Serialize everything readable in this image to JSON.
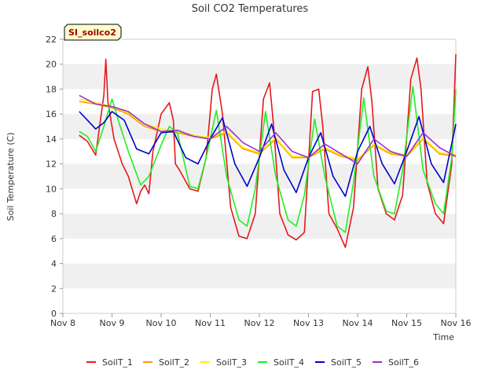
{
  "chart_data": {
    "type": "line",
    "title": "Soil CO2 Temperatures",
    "site_label": "SI_soilco2",
    "xlabel": "Time",
    "ylabel": "Soil Temperature (C)",
    "ylim": [
      0,
      22
    ],
    "yticks": [
      0,
      2,
      4,
      6,
      8,
      10,
      12,
      14,
      16,
      18,
      20,
      22
    ],
    "xlim": [
      "2024-11-08",
      "2024-11-16"
    ],
    "xticks": [
      "Nov 8",
      "Nov 9",
      "Nov 10",
      "Nov 11",
      "Nov 12",
      "Nov 13",
      "Nov 14",
      "Nov 15",
      "Nov 16"
    ],
    "grid": "horizontal bands",
    "legend_position": "bottom",
    "series": [
      {
        "name": "SoilT_1",
        "color": "#e41a1c",
        "x": [
          "2024-11-08 08:00",
          "2024-11-08 12:00",
          "2024-11-08 16:00",
          "2024-11-08 20:00",
          "2024-11-08 21:00",
          "2024-11-08 22:00",
          "2024-11-09 01:00",
          "2024-11-09 05:00",
          "2024-11-09 08:00",
          "2024-11-09 12:00",
          "2024-11-09 14:00",
          "2024-11-09 16:00",
          "2024-11-09 18:00",
          "2024-11-09 20:00",
          "2024-11-10 00:00",
          "2024-11-10 04:00",
          "2024-11-10 06:00",
          "2024-11-10 07:00",
          "2024-11-10 09:00",
          "2024-11-10 14:00",
          "2024-11-10 18:00",
          "2024-11-10 22:00",
          "2024-11-11 01:00",
          "2024-11-11 03:00",
          "2024-11-11 06:00",
          "2024-11-11 10:00",
          "2024-11-11 14:00",
          "2024-11-11 18:00",
          "2024-11-11 22:00",
          "2024-11-12 02:00",
          "2024-11-12 05:00",
          "2024-11-12 07:00",
          "2024-11-12 10:00",
          "2024-11-12 14:00",
          "2024-11-12 18:00",
          "2024-11-12 22:00",
          "2024-11-13 02:00",
          "2024-11-13 05:00",
          "2024-11-13 07:00",
          "2024-11-13 10:00",
          "2024-11-13 14:00",
          "2024-11-13 18:00",
          "2024-11-13 22:00",
          "2024-11-14 02:00",
          "2024-11-14 05:00",
          "2024-11-14 07:00",
          "2024-11-14 10:00",
          "2024-11-14 14:00",
          "2024-11-14 18:00",
          "2024-11-14 22:00",
          "2024-11-15 02:00",
          "2024-11-15 05:00",
          "2024-11-15 07:00",
          "2024-11-15 10:00",
          "2024-11-15 14:00",
          "2024-11-15 18:00",
          "2024-11-15 22:00",
          "2024-11-16 00:00"
        ],
        "y": [
          14.3,
          13.8,
          12.7,
          17.5,
          20.4,
          17.0,
          14.0,
          12.0,
          11.0,
          8.8,
          9.8,
          10.3,
          9.6,
          13.0,
          16.0,
          16.9,
          15.5,
          12.0,
          11.5,
          10.0,
          9.8,
          12.5,
          18.0,
          19.2,
          16.0,
          8.5,
          6.2,
          6.0,
          8.0,
          17.2,
          18.5,
          15.0,
          8.0,
          6.3,
          5.9,
          6.5,
          17.8,
          18.0,
          15.0,
          8.0,
          6.8,
          5.3,
          8.5,
          18.0,
          19.8,
          17.0,
          10.0,
          8.0,
          7.5,
          9.5,
          18.8,
          20.5,
          18.0,
          10.5,
          8.0,
          7.2,
          12.0,
          20.8
        ]
      },
      {
        "name": "SoilT_2",
        "color": "#ff9900",
        "x": [
          "2024-11-08 08:00",
          "2024-11-08 16:00",
          "2024-11-09 00:00",
          "2024-11-09 08:00",
          "2024-11-09 16:00",
          "2024-11-10 00:00",
          "2024-11-10 08:00",
          "2024-11-10 16:00",
          "2024-11-11 00:00",
          "2024-11-11 08:00",
          "2024-11-11 16:00",
          "2024-11-12 00:00",
          "2024-11-12 08:00",
          "2024-11-12 16:00",
          "2024-11-13 00:00",
          "2024-11-13 08:00",
          "2024-11-13 16:00",
          "2024-11-14 00:00",
          "2024-11-14 08:00",
          "2024-11-14 16:00",
          "2024-11-15 00:00",
          "2024-11-15 08:00",
          "2024-11-15 16:00",
          "2024-11-16 00:00"
        ],
        "y": [
          17.0,
          16.8,
          16.5,
          16.0,
          15.0,
          14.6,
          14.5,
          14.2,
          14.0,
          14.5,
          13.2,
          12.8,
          14.0,
          12.5,
          12.5,
          13.2,
          12.6,
          12.3,
          13.5,
          12.8,
          12.6,
          14.0,
          12.8,
          12.6
        ]
      },
      {
        "name": "SoilT_3",
        "color": "#ffee00",
        "x": [
          "2024-11-08 08:00",
          "2024-11-08 16:00",
          "2024-11-09 00:00",
          "2024-11-09 08:00",
          "2024-11-09 16:00",
          "2024-11-10 00:00",
          "2024-11-10 08:00",
          "2024-11-10 16:00",
          "2024-11-11 00:00",
          "2024-11-11 08:00",
          "2024-11-11 16:00",
          "2024-11-12 00:00",
          "2024-11-12 08:00",
          "2024-11-12 16:00",
          "2024-11-13 00:00",
          "2024-11-13 08:00",
          "2024-11-13 16:00",
          "2024-11-14 00:00",
          "2024-11-14 08:00",
          "2024-11-14 16:00",
          "2024-11-15 00:00",
          "2024-11-15 08:00",
          "2024-11-15 16:00",
          "2024-11-16 00:00"
        ],
        "y": [
          17.2,
          16.9,
          16.6,
          16.1,
          15.2,
          14.8,
          14.6,
          14.3,
          14.1,
          14.6,
          13.3,
          12.9,
          14.1,
          12.6,
          12.6,
          13.3,
          12.7,
          12.4,
          13.6,
          12.9,
          12.7,
          14.1,
          12.9,
          12.7
        ]
      },
      {
        "name": "SoilT_4",
        "color": "#22ee22",
        "x": [
          "2024-11-08 08:00",
          "2024-11-08 12:00",
          "2024-11-08 16:00",
          "2024-11-08 20:00",
          "2024-11-09 00:00",
          "2024-11-09 04:00",
          "2024-11-09 08:00",
          "2024-11-09 14:00",
          "2024-11-09 18:00",
          "2024-11-10 00:00",
          "2024-11-10 04:00",
          "2024-11-10 08:00",
          "2024-11-10 14:00",
          "2024-11-10 18:00",
          "2024-11-10 22:00",
          "2024-11-11 03:00",
          "2024-11-11 08:00",
          "2024-11-11 14:00",
          "2024-11-11 18:00",
          "2024-11-11 22:00",
          "2024-11-12 03:00",
          "2024-11-12 08:00",
          "2024-11-12 14:00",
          "2024-11-12 18:00",
          "2024-11-12 22:00",
          "2024-11-13 03:00",
          "2024-11-13 08:00",
          "2024-11-13 14:00",
          "2024-11-13 18:00",
          "2024-11-13 22:00",
          "2024-11-14 03:00",
          "2024-11-14 08:00",
          "2024-11-14 14:00",
          "2024-11-14 18:00",
          "2024-11-14 22:00",
          "2024-11-15 03:00",
          "2024-11-15 08:00",
          "2024-11-15 14:00",
          "2024-11-15 18:00",
          "2024-11-15 22:00",
          "2024-11-16 00:00"
        ],
        "y": [
          14.6,
          14.2,
          13.0,
          15.0,
          17.2,
          15.0,
          13.0,
          10.3,
          11.0,
          13.5,
          15.0,
          14.5,
          10.2,
          10.0,
          12.5,
          16.3,
          11.0,
          7.5,
          7.0,
          10.0,
          16.2,
          11.0,
          7.5,
          7.0,
          9.5,
          15.6,
          11.0,
          7.0,
          6.5,
          10.5,
          17.3,
          11.0,
          8.2,
          8.0,
          11.5,
          18.2,
          11.5,
          8.8,
          8.0,
          12.5,
          18.0
        ]
      },
      {
        "name": "SoilT_5",
        "color": "#0000cc",
        "x": [
          "2024-11-08 08:00",
          "2024-11-08 12:00",
          "2024-11-08 16:00",
          "2024-11-08 20:00",
          "2024-11-09 00:00",
          "2024-11-09 06:00",
          "2024-11-09 12:00",
          "2024-11-09 18:00",
          "2024-11-10 00:00",
          "2024-11-10 06:00",
          "2024-11-10 12:00",
          "2024-11-10 18:00",
          "2024-11-11 00:00",
          "2024-11-11 06:00",
          "2024-11-11 12:00",
          "2024-11-11 18:00",
          "2024-11-12 00:00",
          "2024-11-12 06:00",
          "2024-11-12 12:00",
          "2024-11-12 18:00",
          "2024-11-13 00:00",
          "2024-11-13 06:00",
          "2024-11-13 12:00",
          "2024-11-13 18:00",
          "2024-11-14 00:00",
          "2024-11-14 06:00",
          "2024-11-14 12:00",
          "2024-11-14 18:00",
          "2024-11-15 00:00",
          "2024-11-15 06:00",
          "2024-11-15 12:00",
          "2024-11-15 18:00",
          "2024-11-16 00:00"
        ],
        "y": [
          16.2,
          15.5,
          14.8,
          15.3,
          16.2,
          15.5,
          13.2,
          12.8,
          14.5,
          14.6,
          12.5,
          12.0,
          14.0,
          15.7,
          12.0,
          10.2,
          12.5,
          15.2,
          11.5,
          9.7,
          12.5,
          14.5,
          11.0,
          9.4,
          13.0,
          15.0,
          12.0,
          10.4,
          13.0,
          15.8,
          12.0,
          10.5,
          15.2
        ]
      },
      {
        "name": "SoilT_6",
        "color": "#9933cc",
        "x": [
          "2024-11-08 08:00",
          "2024-11-08 16:00",
          "2024-11-09 00:00",
          "2024-11-09 08:00",
          "2024-11-09 16:00",
          "2024-11-10 00:00",
          "2024-11-10 08:00",
          "2024-11-10 16:00",
          "2024-11-11 00:00",
          "2024-11-11 08:00",
          "2024-11-11 16:00",
          "2024-11-12 00:00",
          "2024-11-12 08:00",
          "2024-11-12 16:00",
          "2024-11-13 00:00",
          "2024-11-13 08:00",
          "2024-11-13 16:00",
          "2024-11-14 00:00",
          "2024-11-14 08:00",
          "2024-11-14 16:00",
          "2024-11-15 00:00",
          "2024-11-15 08:00",
          "2024-11-15 16:00",
          "2024-11-16 00:00"
        ],
        "y": [
          17.5,
          16.8,
          16.6,
          16.2,
          15.2,
          14.6,
          14.7,
          14.2,
          14.0,
          15.0,
          13.7,
          13.0,
          14.5,
          13.0,
          12.5,
          13.6,
          12.8,
          12.0,
          14.0,
          13.0,
          12.6,
          14.5,
          13.3,
          12.6
        ]
      }
    ]
  }
}
